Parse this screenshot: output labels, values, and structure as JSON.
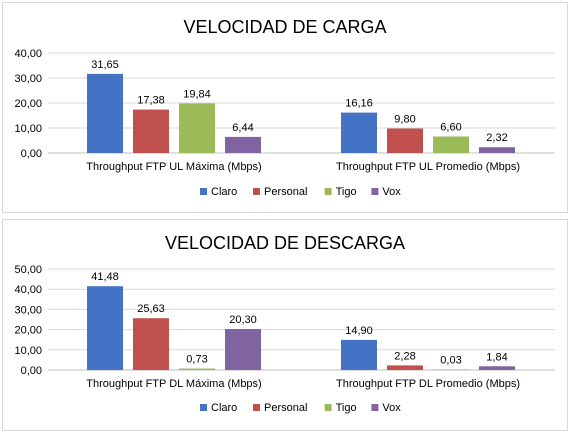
{
  "chart_data": [
    {
      "type": "bar",
      "title": "VELOCIDAD DE CARGA",
      "categories": [
        "Throughput FTP UL Máxima (Mbps)",
        "Throughput FTP UL Promedio (Mbps)"
      ],
      "series": [
        {
          "name": "Claro",
          "values": [
            31.65,
            16.16
          ],
          "labels": [
            "31,65",
            "16,16"
          ],
          "color": "#4472c4"
        },
        {
          "name": "Personal",
          "values": [
            17.38,
            9.8
          ],
          "labels": [
            "17,38",
            "9,80"
          ],
          "color": "#c0504d"
        },
        {
          "name": "Tigo",
          "values": [
            19.84,
            6.6
          ],
          "labels": [
            "19,84",
            "6,60"
          ],
          "color": "#9bbb59"
        },
        {
          "name": "Vox",
          "values": [
            6.44,
            2.32
          ],
          "labels": [
            "6,44",
            "2,32"
          ],
          "color": "#8064a2"
        }
      ],
      "ylim": [
        0,
        40
      ],
      "yticks": [
        "0,00",
        "10,00",
        "20,00",
        "30,00",
        "40,00"
      ],
      "ytick_values": [
        0,
        10,
        20,
        30,
        40
      ],
      "grid": true,
      "legend_position": "bottom"
    },
    {
      "type": "bar",
      "title": "VELOCIDAD DE DESCARGA",
      "categories": [
        "Throughput FTP DL Máxima (Mbps)",
        "Throughput FTP DL Promedio (Mbps)"
      ],
      "series": [
        {
          "name": "Claro",
          "values": [
            41.48,
            14.9
          ],
          "labels": [
            "41,48",
            "14,90"
          ],
          "color": "#4472c4"
        },
        {
          "name": "Personal",
          "values": [
            25.63,
            2.28
          ],
          "labels": [
            "25,63",
            "2,28"
          ],
          "color": "#c0504d"
        },
        {
          "name": "Tigo",
          "values": [
            0.73,
            0.03
          ],
          "labels": [
            "0,73",
            "0,03"
          ],
          "color": "#9bbb59"
        },
        {
          "name": "Vox",
          "values": [
            20.3,
            1.84
          ],
          "labels": [
            "20,30",
            "1,84"
          ],
          "color": "#8064a2"
        }
      ],
      "ylim": [
        0,
        50
      ],
      "yticks": [
        "0,00",
        "10,00",
        "20,00",
        "30,00",
        "40,00",
        "50,00"
      ],
      "ytick_values": [
        0,
        10,
        20,
        30,
        40,
        50
      ],
      "grid": true,
      "legend_position": "bottom"
    }
  ]
}
